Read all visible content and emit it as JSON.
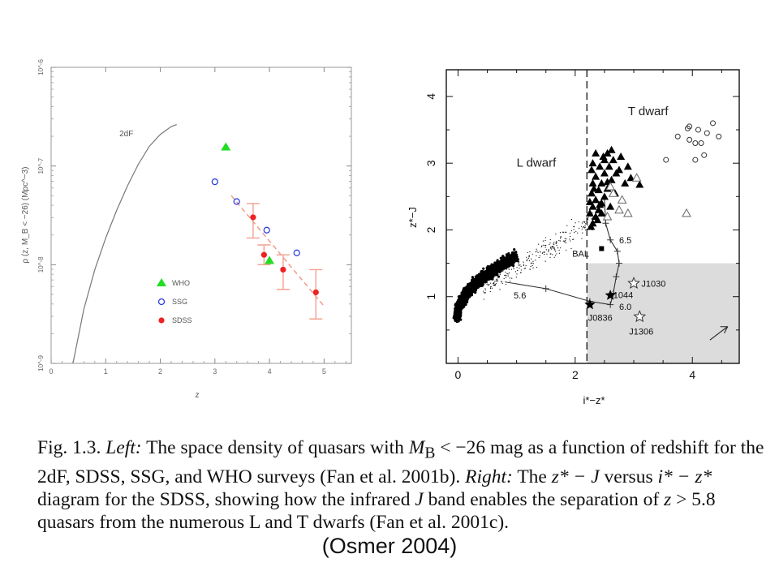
{
  "chart_data": [
    {
      "type": "scatter",
      "panel": "left",
      "xlabel": "z",
      "ylabel": "ρ (z, M_B < −26) (Mpc^−3)",
      "xlim": [
        0,
        5.5
      ],
      "ylim_log10": [
        -9,
        -6
      ],
      "x_ticks": [
        "0",
        "1",
        "2",
        "3",
        "4",
        "5"
      ],
      "y_ticks": [
        "10^-9",
        "10^-8",
        "10^-7",
        "10^-6"
      ],
      "curve_label": "2dF",
      "curve_2dF": [
        [
          0.4,
          -9.0
        ],
        [
          0.6,
          -8.45
        ],
        [
          0.8,
          -8.05
        ],
        [
          1.0,
          -7.73
        ],
        [
          1.2,
          -7.45
        ],
        [
          1.4,
          -7.2
        ],
        [
          1.6,
          -6.98
        ],
        [
          1.8,
          -6.8
        ],
        [
          2.0,
          -6.68
        ],
        [
          2.2,
          -6.6
        ],
        [
          2.3,
          -6.58
        ]
      ],
      "series": [
        {
          "name": "WHO",
          "color": "#22dd22",
          "marker": "triangle",
          "points": [
            [
              3.2,
              -6.81
            ],
            [
              4.0,
              -7.96
            ]
          ]
        },
        {
          "name": "SSG",
          "color": "#2233dd",
          "marker": "open-circle",
          "points": [
            [
              3.0,
              -7.16
            ],
            [
              3.4,
              -7.36
            ],
            [
              3.95,
              -7.65
            ],
            [
              4.5,
              -7.88
            ]
          ]
        },
        {
          "name": "SDSS",
          "color": "#ee2222",
          "marker": "filled-circle",
          "points": [
            {
              "x": 3.7,
              "y": -7.52,
              "ylo": -7.73,
              "yhi": -7.38
            },
            {
              "x": 3.9,
              "y": -7.9,
              "ylo": -8.0,
              "yhi": -7.8
            },
            {
              "x": 4.25,
              "y": -8.05,
              "ylo": -8.25,
              "yhi": -7.9
            },
            {
              "x": 4.85,
              "y": -8.28,
              "ylo": -8.55,
              "yhi": -8.05
            }
          ]
        }
      ],
      "fit_line": [
        [
          3.3,
          -7.3
        ],
        [
          5.0,
          -8.42
        ]
      ]
    },
    {
      "type": "scatter",
      "panel": "right",
      "xlabel": "i*−z*",
      "ylabel": "z*−J",
      "xlim": [
        -0.2,
        4.8
      ],
      "ylim": [
        0,
        4.4
      ],
      "x_ticks": [
        "0",
        "2",
        "4"
      ],
      "y_ticks": [
        "1",
        "2",
        "3",
        "4"
      ],
      "vertical_cut": 2.2,
      "shaded_region": {
        "x": [
          2.2,
          4.8
        ],
        "y": [
          0,
          1.5
        ]
      },
      "labels": {
        "t_dwarf": "T dwarf",
        "l_dwarf": "L dwarf",
        "bal": "BAL",
        "track_65": "6.5",
        "track_60": "6.0",
        "track_56": "5.6",
        "j1030": "J1030",
        "j1044": "1044",
        "j0836": "J0836",
        "j1306": "J1306"
      },
      "track": [
        [
          0.8,
          1.22
        ],
        [
          1.5,
          1.12
        ],
        [
          2.25,
          0.93
        ],
        [
          2.6,
          0.88
        ],
        [
          2.65,
          1.05
        ],
        [
          2.7,
          1.3
        ],
        [
          2.75,
          1.5
        ],
        [
          2.72,
          1.68
        ],
        [
          2.6,
          1.85
        ],
        [
          2.52,
          2.1
        ],
        [
          2.5,
          2.45
        ]
      ],
      "l_dwarfs_filled": [
        [
          2.27,
          2.05
        ],
        [
          2.3,
          2.1
        ],
        [
          2.35,
          2.2
        ],
        [
          2.25,
          2.25
        ],
        [
          2.4,
          2.3
        ],
        [
          2.3,
          2.35
        ],
        [
          2.45,
          2.4
        ],
        [
          2.35,
          2.45
        ],
        [
          2.5,
          2.5
        ],
        [
          2.28,
          2.55
        ],
        [
          2.4,
          2.6
        ],
        [
          2.55,
          2.62
        ],
        [
          2.3,
          2.7
        ],
        [
          2.45,
          2.7
        ],
        [
          2.62,
          2.75
        ],
        [
          2.35,
          2.8
        ],
        [
          2.5,
          2.85
        ],
        [
          2.7,
          2.85
        ],
        [
          2.28,
          2.9
        ],
        [
          2.42,
          2.95
        ],
        [
          2.58,
          2.95
        ],
        [
          2.75,
          2.9
        ],
        [
          2.3,
          3.0
        ],
        [
          2.5,
          3.05
        ],
        [
          2.65,
          3.05
        ],
        [
          2.9,
          2.95
        ],
        [
          2.35,
          3.15
        ],
        [
          2.55,
          3.15
        ],
        [
          2.78,
          3.1
        ],
        [
          2.45,
          2.25
        ],
        [
          2.6,
          2.35
        ],
        [
          2.38,
          2.15
        ],
        [
          2.55,
          2.72
        ],
        [
          2.95,
          2.78
        ],
        [
          2.85,
          2.7
        ],
        [
          3.1,
          2.68
        ],
        [
          2.48,
          3.1
        ],
        [
          2.68,
          2.55
        ],
        [
          2.25,
          2.42
        ],
        [
          2.62,
          3.2
        ],
        [
          2.42,
          2.38
        ],
        [
          2.32,
          2.62
        ]
      ],
      "l_dwarfs_open": [
        [
          2.55,
          2.2
        ],
        [
          2.75,
          2.3
        ],
        [
          2.9,
          2.25
        ],
        [
          2.65,
          2.55
        ],
        [
          3.05,
          2.78
        ],
        [
          2.8,
          2.45
        ],
        [
          3.9,
          2.25
        ],
        [
          2.6,
          2.65
        ]
      ],
      "t_dwarfs_open": [
        [
          3.55,
          3.05
        ],
        [
          3.75,
          3.4
        ],
        [
          3.95,
          3.55
        ],
        [
          4.1,
          3.5
        ],
        [
          4.25,
          3.45
        ],
        [
          4.05,
          3.3
        ],
        [
          4.15,
          3.3
        ],
        [
          4.45,
          3.4
        ],
        [
          4.35,
          3.6
        ],
        [
          4.2,
          3.12
        ],
        [
          4.05,
          3.05
        ],
        [
          3.95,
          3.35
        ],
        [
          3.92,
          3.52
        ]
      ],
      "quasars_filled_stars": [
        [
          2.25,
          0.88
        ],
        [
          2.6,
          1.02
        ]
      ],
      "quasars_open_stars": [
        [
          3.0,
          1.2
        ],
        [
          3.1,
          0.7
        ]
      ],
      "bal_point": [
        2.45,
        1.72
      ],
      "reddening_arrow": [
        [
          4.3,
          0.35
        ],
        [
          4.6,
          0.55
        ]
      ]
    }
  ],
  "caption": {
    "fig_label": "Fig. 1.3.",
    "left_label": "Left:",
    "text1": "The space density of quasars with",
    "mb_symbol": "M",
    "mb_sub": "B",
    "mb_cond": "< −26",
    "text2": "mag as a function of redshift for the 2dF, SDSS, SSG, and WHO surveys (Fan et al. 2001b).",
    "right_label": "Right:",
    "text3": "The",
    "zj": "z* − J",
    "versus": "versus",
    "iz": "i* − z*",
    "text4": "diagram for the SDSS, showing how the infrared",
    "jband": "J",
    "text5": "band enables the separation of",
    "zcond": "z",
    "text6": "> 5.8 quasars from the numerous L and T dwarfs (Fan et al. 2001c)."
  },
  "credit": "(Osmer 2004)"
}
